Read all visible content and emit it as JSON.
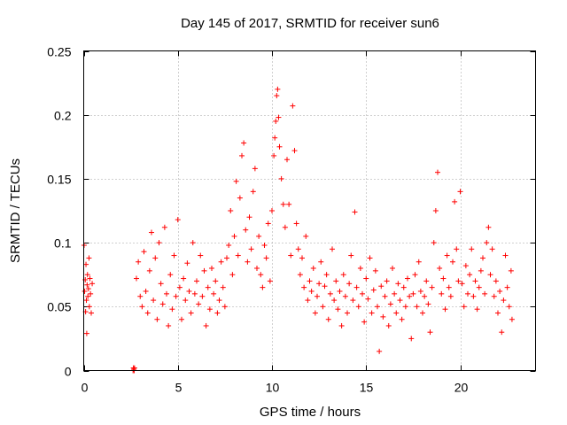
{
  "chart_data": {
    "type": "scatter",
    "title": "Day 145 of 2017, SRMTID for receiver sun6",
    "xlabel": "GPS time / hours",
    "ylabel": "SRMTID / TECUs",
    "xlim": [
      0,
      24
    ],
    "ylim": [
      0,
      0.25
    ],
    "x_ticks": [
      0,
      5,
      10,
      15,
      20
    ],
    "x_tick_labels": [
      "0",
      "5",
      "10",
      "15",
      "20"
    ],
    "y_ticks": [
      0,
      0.05,
      0.1,
      0.15,
      0.2,
      0.25
    ],
    "y_tick_labels": [
      "0",
      "0.05",
      "0.1",
      "0.15",
      "0.2",
      "0.25"
    ],
    "grid": true,
    "marker": "+",
    "series_color": "#ff0000",
    "data_gaps_hours": [
      [
        0.5,
        2.6
      ]
    ],
    "series": [
      {
        "name": "SRMTID",
        "points": [
          [
            0.02,
            0.098
          ],
          [
            0.05,
            0.062
          ],
          [
            0.08,
            0.071
          ],
          [
            0.1,
            0.046
          ],
          [
            0.12,
            0.083
          ],
          [
            0.14,
            0.055
          ],
          [
            0.16,
            0.029
          ],
          [
            0.18,
            0.067
          ],
          [
            0.2,
            0.075
          ],
          [
            0.22,
            0.058
          ],
          [
            0.25,
            0.064
          ],
          [
            0.28,
            0.088
          ],
          [
            0.3,
            0.05
          ],
          [
            0.33,
            0.072
          ],
          [
            0.36,
            0.06
          ],
          [
            0.4,
            0.045
          ],
          [
            0.45,
            0.068
          ],
          [
            2.62,
            0.0
          ],
          [
            2.64,
            0.002
          ],
          [
            2.66,
            0.001
          ],
          [
            2.68,
            0.0
          ],
          [
            2.7,
            0.002
          ],
          [
            2.8,
            0.072
          ],
          [
            2.9,
            0.085
          ],
          [
            3.0,
            0.058
          ],
          [
            3.1,
            0.05
          ],
          [
            3.2,
            0.093
          ],
          [
            3.3,
            0.062
          ],
          [
            3.4,
            0.045
          ],
          [
            3.5,
            0.078
          ],
          [
            3.6,
            0.108
          ],
          [
            3.7,
            0.055
          ],
          [
            3.8,
            0.088
          ],
          [
            3.9,
            0.04
          ],
          [
            4.0,
            0.1
          ],
          [
            4.1,
            0.068
          ],
          [
            4.2,
            0.052
          ],
          [
            4.3,
            0.112
          ],
          [
            4.4,
            0.06
          ],
          [
            4.5,
            0.035
          ],
          [
            4.6,
            0.075
          ],
          [
            4.7,
            0.048
          ],
          [
            4.8,
            0.09
          ],
          [
            4.9,
            0.058
          ],
          [
            5.0,
            0.118
          ],
          [
            5.1,
            0.065
          ],
          [
            5.2,
            0.04
          ],
          [
            5.3,
            0.072
          ],
          [
            5.4,
            0.055
          ],
          [
            5.5,
            0.084
          ],
          [
            5.6,
            0.062
          ],
          [
            5.7,
            0.045
          ],
          [
            5.8,
            0.1
          ],
          [
            5.9,
            0.06
          ],
          [
            6.0,
            0.07
          ],
          [
            6.1,
            0.052
          ],
          [
            6.2,
            0.09
          ],
          [
            6.3,
            0.058
          ],
          [
            6.4,
            0.078
          ],
          [
            6.5,
            0.035
          ],
          [
            6.6,
            0.065
          ],
          [
            6.7,
            0.048
          ],
          [
            6.8,
            0.08
          ],
          [
            6.9,
            0.06
          ],
          [
            7.0,
            0.07
          ],
          [
            7.1,
            0.045
          ],
          [
            7.2,
            0.055
          ],
          [
            7.3,
            0.085
          ],
          [
            7.4,
            0.065
          ],
          [
            7.5,
            0.05
          ],
          [
            7.6,
            0.088
          ],
          [
            7.7,
            0.098
          ],
          [
            7.8,
            0.125
          ],
          [
            7.9,
            0.075
          ],
          [
            8.0,
            0.105
          ],
          [
            8.1,
            0.148
          ],
          [
            8.2,
            0.09
          ],
          [
            8.3,
            0.135
          ],
          [
            8.4,
            0.168
          ],
          [
            8.5,
            0.178
          ],
          [
            8.6,
            0.11
          ],
          [
            8.7,
            0.085
          ],
          [
            8.8,
            0.12
          ],
          [
            8.9,
            0.095
          ],
          [
            9.0,
            0.14
          ],
          [
            9.1,
            0.158
          ],
          [
            9.2,
            0.08
          ],
          [
            9.3,
            0.105
          ],
          [
            9.4,
            0.075
          ],
          [
            9.5,
            0.065
          ],
          [
            9.6,
            0.098
          ],
          [
            9.7,
            0.088
          ],
          [
            9.8,
            0.115
          ],
          [
            9.9,
            0.07
          ],
          [
            10.0,
            0.125
          ],
          [
            10.1,
            0.168
          ],
          [
            10.15,
            0.182
          ],
          [
            10.2,
            0.195
          ],
          [
            10.25,
            0.215
          ],
          [
            10.3,
            0.22
          ],
          [
            10.35,
            0.198
          ],
          [
            10.4,
            0.175
          ],
          [
            10.5,
            0.15
          ],
          [
            10.6,
            0.13
          ],
          [
            10.7,
            0.112
          ],
          [
            10.8,
            0.165
          ],
          [
            10.9,
            0.13
          ],
          [
            11.0,
            0.09
          ],
          [
            11.1,
            0.207
          ],
          [
            11.2,
            0.172
          ],
          [
            11.3,
            0.115
          ],
          [
            11.4,
            0.095
          ],
          [
            11.5,
            0.075
          ],
          [
            11.6,
            0.088
          ],
          [
            11.7,
            0.065
          ],
          [
            11.8,
            0.105
          ],
          [
            11.9,
            0.055
          ],
          [
            12.0,
            0.07
          ],
          [
            12.1,
            0.062
          ],
          [
            12.2,
            0.08
          ],
          [
            12.3,
            0.045
          ],
          [
            12.4,
            0.058
          ],
          [
            12.5,
            0.068
          ],
          [
            12.6,
            0.085
          ],
          [
            12.7,
            0.05
          ],
          [
            12.8,
            0.066
          ],
          [
            12.9,
            0.075
          ],
          [
            13.0,
            0.04
          ],
          [
            13.1,
            0.06
          ],
          [
            13.2,
            0.095
          ],
          [
            13.3,
            0.055
          ],
          [
            13.4,
            0.07
          ],
          [
            13.5,
            0.048
          ],
          [
            13.6,
            0.062
          ],
          [
            13.7,
            0.035
          ],
          [
            13.8,
            0.075
          ],
          [
            13.9,
            0.058
          ],
          [
            14.0,
            0.045
          ],
          [
            14.1,
            0.068
          ],
          [
            14.2,
            0.09
          ],
          [
            14.3,
            0.055
          ],
          [
            14.4,
            0.124
          ],
          [
            14.5,
            0.065
          ],
          [
            14.6,
            0.05
          ],
          [
            14.7,
            0.08
          ],
          [
            14.8,
            0.06
          ],
          [
            14.9,
            0.038
          ],
          [
            15.0,
            0.072
          ],
          [
            15.1,
            0.056
          ],
          [
            15.2,
            0.088
          ],
          [
            15.3,
            0.045
          ],
          [
            15.4,
            0.063
          ],
          [
            15.5,
            0.078
          ],
          [
            15.6,
            0.05
          ],
          [
            15.7,
            0.015
          ],
          [
            15.8,
            0.066
          ],
          [
            15.9,
            0.042
          ],
          [
            16.0,
            0.058
          ],
          [
            16.1,
            0.07
          ],
          [
            16.2,
            0.035
          ],
          [
            16.3,
            0.052
          ],
          [
            16.4,
            0.08
          ],
          [
            16.5,
            0.06
          ],
          [
            16.6,
            0.045
          ],
          [
            16.7,
            0.068
          ],
          [
            16.8,
            0.055
          ],
          [
            16.9,
            0.04
          ],
          [
            17.0,
            0.065
          ],
          [
            17.1,
            0.05
          ],
          [
            17.2,
            0.072
          ],
          [
            17.3,
            0.058
          ],
          [
            17.4,
            0.025
          ],
          [
            17.5,
            0.06
          ],
          [
            17.6,
            0.075
          ],
          [
            17.7,
            0.05
          ],
          [
            17.8,
            0.085
          ],
          [
            17.9,
            0.062
          ],
          [
            18.0,
            0.045
          ],
          [
            18.1,
            0.058
          ],
          [
            18.2,
            0.07
          ],
          [
            18.3,
            0.052
          ],
          [
            18.4,
            0.03
          ],
          [
            18.5,
            0.065
          ],
          [
            18.6,
            0.1
          ],
          [
            18.7,
            0.125
          ],
          [
            18.8,
            0.155
          ],
          [
            18.9,
            0.08
          ],
          [
            19.0,
            0.06
          ],
          [
            19.1,
            0.072
          ],
          [
            19.2,
            0.048
          ],
          [
            19.3,
            0.09
          ],
          [
            19.4,
            0.065
          ],
          [
            19.5,
            0.058
          ],
          [
            19.6,
            0.085
          ],
          [
            19.7,
            0.132
          ],
          [
            19.8,
            0.095
          ],
          [
            19.9,
            0.07
          ],
          [
            20.0,
            0.14
          ],
          [
            20.1,
            0.068
          ],
          [
            20.2,
            0.05
          ],
          [
            20.3,
            0.082
          ],
          [
            20.4,
            0.06
          ],
          [
            20.5,
            0.075
          ],
          [
            20.6,
            0.095
          ],
          [
            20.7,
            0.058
          ],
          [
            20.8,
            0.07
          ],
          [
            20.9,
            0.048
          ],
          [
            21.0,
            0.065
          ],
          [
            21.1,
            0.078
          ],
          [
            21.2,
            0.088
          ],
          [
            21.3,
            0.06
          ],
          [
            21.4,
            0.1
          ],
          [
            21.5,
            0.112
          ],
          [
            21.6,
            0.075
          ],
          [
            21.7,
            0.095
          ],
          [
            21.8,
            0.058
          ],
          [
            21.9,
            0.07
          ],
          [
            22.0,
            0.045
          ],
          [
            22.1,
            0.062
          ],
          [
            22.2,
            0.03
          ],
          [
            22.3,
            0.055
          ],
          [
            22.4,
            0.09
          ],
          [
            22.5,
            0.065
          ],
          [
            22.6,
            0.05
          ],
          [
            22.7,
            0.078
          ],
          [
            22.75,
            0.04
          ]
        ]
      }
    ]
  }
}
